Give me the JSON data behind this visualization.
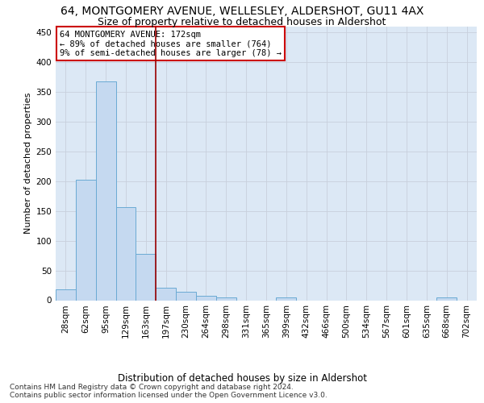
{
  "title": "64, MONTGOMERY AVENUE, WELLESLEY, ALDERSHOT, GU11 4AX",
  "subtitle": "Size of property relative to detached houses in Aldershot",
  "xlabel": "Distribution of detached houses by size in Aldershot",
  "ylabel": "Number of detached properties",
  "categories": [
    "28sqm",
    "62sqm",
    "95sqm",
    "129sqm",
    "163sqm",
    "197sqm",
    "230sqm",
    "264sqm",
    "298sqm",
    "331sqm",
    "365sqm",
    "399sqm",
    "432sqm",
    "466sqm",
    "500sqm",
    "534sqm",
    "567sqm",
    "601sqm",
    "635sqm",
    "668sqm",
    "702sqm"
  ],
  "values": [
    18,
    202,
    368,
    156,
    78,
    21,
    14,
    8,
    5,
    0,
    0,
    5,
    0,
    0,
    0,
    0,
    0,
    0,
    0,
    5,
    0
  ],
  "bar_color": "#c5d9f0",
  "bar_edge_color": "#6aaad4",
  "annotation_text": "64 MONTGOMERY AVENUE: 172sqm\n← 89% of detached houses are smaller (764)\n9% of semi-detached houses are larger (78) →",
  "annotation_box_color": "#ffffff",
  "annotation_box_edge": "#cc0000",
  "vline_color": "#990000",
  "footer": "Contains HM Land Registry data © Crown copyright and database right 2024.\nContains public sector information licensed under the Open Government Licence v3.0.",
  "ylim": [
    0,
    460
  ],
  "yticks": [
    0,
    50,
    100,
    150,
    200,
    250,
    300,
    350,
    400,
    450
  ],
  "grid_color": "#c8d0dc",
  "bg_color": "#dce8f5",
  "title_fontsize": 10,
  "subtitle_fontsize": 9,
  "xlabel_fontsize": 8.5,
  "ylabel_fontsize": 8,
  "tick_fontsize": 7.5,
  "footer_fontsize": 6.5,
  "annotation_fontsize": 7.5
}
